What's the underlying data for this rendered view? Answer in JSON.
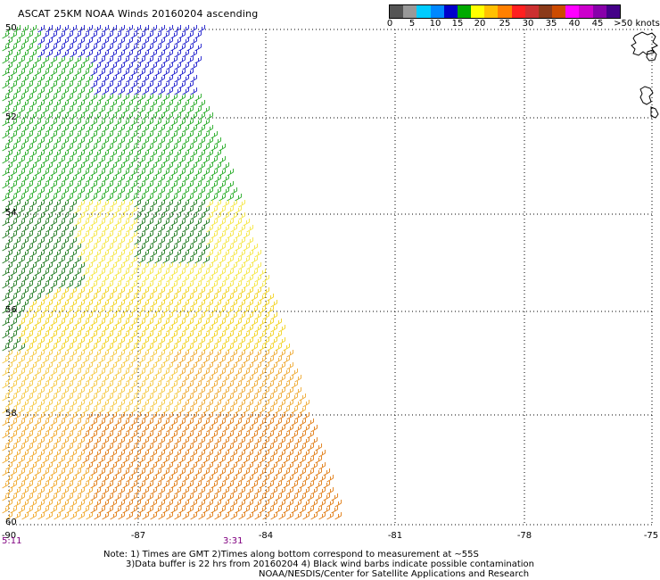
{
  "title": "ASCAT 25KM NOAA Winds 20160204 ascending",
  "legend": {
    "colors": [
      "#555555",
      "#999999",
      "#00ccff",
      "#0088ff",
      "#0000cc",
      "#00aa00",
      "#ffff00",
      "#ffc000",
      "#ff8000",
      "#ff2020",
      "#cc3030",
      "#8b3a1a",
      "#cc4b00",
      "#ff00ff",
      "#cc00cc",
      "#8800aa",
      "#440088"
    ],
    "labels": [
      "0",
      "5",
      "10",
      "15",
      "20",
      "25",
      "30",
      "35",
      "40",
      "45",
      ">50 knots"
    ]
  },
  "map": {
    "lat_labels": [
      "50",
      "52",
      "54",
      "56",
      "58",
      "60"
    ],
    "lon_labels": [
      "-90",
      "-87",
      "-84",
      "-81",
      "-78",
      "-75"
    ],
    "time_labels": [
      "5:11",
      "3:31"
    ]
  },
  "notes": [
    "Note: 1) Times are GMT 2)Times along bottom correspond to measurement at ~55S",
    "3)Data buffer is 22 hrs from 20160204 4) Black wind barbs indicate possible contamination",
    "NOAA/NESDIS/Center for Satellite Applications and Research"
  ],
  "chart_data": {
    "type": "wind-barb-map",
    "title": "ASCAT 25KM NOAA Winds 20160204 ascending",
    "lat_range": [
      -60,
      -50
    ],
    "lon_range": [
      -90,
      -75
    ],
    "grid": true,
    "legend_units": "knots",
    "speed_bins": [
      0,
      5,
      10,
      15,
      20,
      25,
      30,
      35,
      40,
      45,
      50
    ],
    "regions": [
      {
        "area": "north (-50 to -52)",
        "speed_knots": "10-15",
        "color": "blue"
      },
      {
        "area": "-51 to -55",
        "speed_knots": "15-20",
        "color": "green"
      },
      {
        "area": "-55 to -57",
        "speed_knots": "20-25",
        "color": "yellow"
      },
      {
        "area": "south (-58 to -60)",
        "speed_knots": "25-30",
        "color": "orange"
      }
    ]
  }
}
